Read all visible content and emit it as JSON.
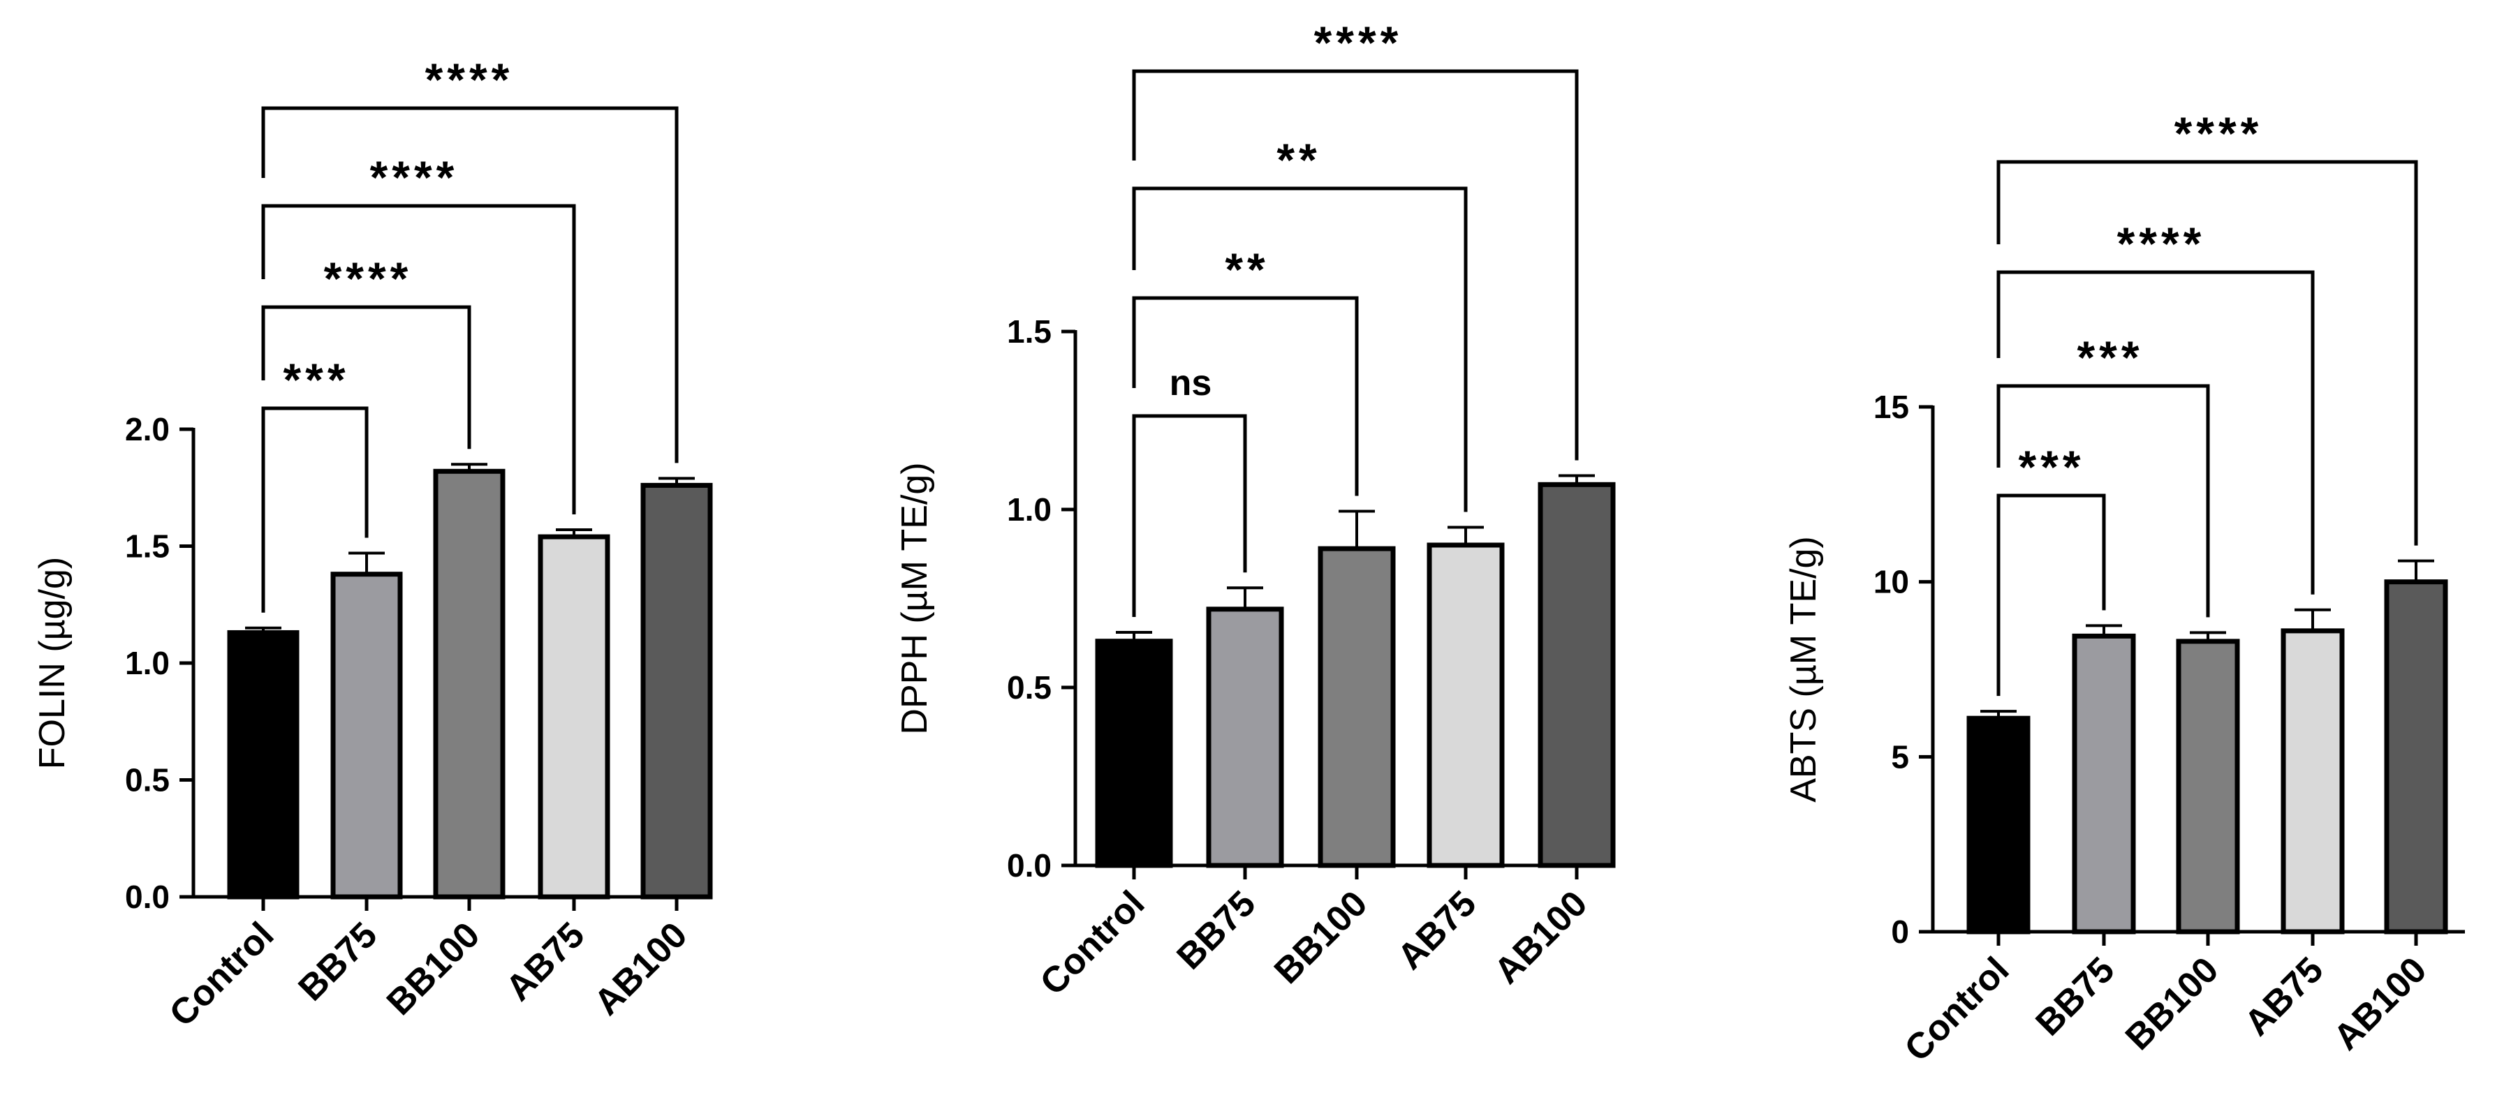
{
  "chart_data": [
    {
      "type": "bar",
      "categories": [
        "Control",
        "BB75",
        "BB100",
        "AB75",
        "AB100"
      ],
      "values": [
        1.13,
        1.38,
        1.82,
        1.54,
        1.76
      ],
      "errors": [
        0.02,
        0.09,
        0.03,
        0.03,
        0.03
      ],
      "ylabel": "FOLIN (µg/g)",
      "xlabel": "",
      "ylim": [
        0,
        2.0
      ],
      "yticks": [
        "0.0",
        "0.5",
        "1.0",
        "1.5",
        "2.0"
      ],
      "comparisons": [
        {
          "from": "Control",
          "to": "BB75",
          "label": "***"
        },
        {
          "from": "Control",
          "to": "BB100",
          "label": "****"
        },
        {
          "from": "Control",
          "to": "AB75",
          "label": "****"
        },
        {
          "from": "Control",
          "to": "AB100",
          "label": "****"
        }
      ]
    },
    {
      "type": "bar",
      "categories": [
        "Control",
        "BB75",
        "BB100",
        "AB75",
        "AB100"
      ],
      "values": [
        0.63,
        0.72,
        0.89,
        0.9,
        1.07
      ],
      "errors": [
        0.025,
        0.06,
        0.105,
        0.05,
        0.025
      ],
      "ylabel": "DPPH (µM TE/g)",
      "xlabel": "",
      "ylim": [
        0,
        1.5
      ],
      "yticks": [
        "0.0",
        "0.5",
        "1.0",
        "1.5"
      ],
      "comparisons": [
        {
          "from": "Control",
          "to": "BB75",
          "label": "ns"
        },
        {
          "from": "Control",
          "to": "BB100",
          "label": "**"
        },
        {
          "from": "Control",
          "to": "AB75",
          "label": "**"
        },
        {
          "from": "Control",
          "to": "AB100",
          "label": "****"
        }
      ]
    },
    {
      "type": "bar",
      "categories": [
        "Control",
        "BB75",
        "BB100",
        "AB75",
        "AB100"
      ],
      "values": [
        6.1,
        8.45,
        8.3,
        8.6,
        10.0
      ],
      "errors": [
        0.2,
        0.3,
        0.25,
        0.6,
        0.6
      ],
      "ylabel": "ABTS (µM TE/g)",
      "xlabel": "",
      "ylim": [
        0,
        15
      ],
      "yticks": [
        "0",
        "5",
        "10",
        "15"
      ],
      "comparisons": [
        {
          "from": "Control",
          "to": "BB75",
          "label": "***"
        },
        {
          "from": "Control",
          "to": "BB100",
          "label": "***"
        },
        {
          "from": "Control",
          "to": "AB75",
          "label": "****"
        },
        {
          "from": "Control",
          "to": "AB100",
          "label": "****"
        }
      ]
    }
  ],
  "colors": {
    "bars": [
      "#000000",
      "#9b9ba0",
      "#7f7f7f",
      "#d9d9d9",
      "#5a5a5a"
    ],
    "axis": "#000000"
  }
}
